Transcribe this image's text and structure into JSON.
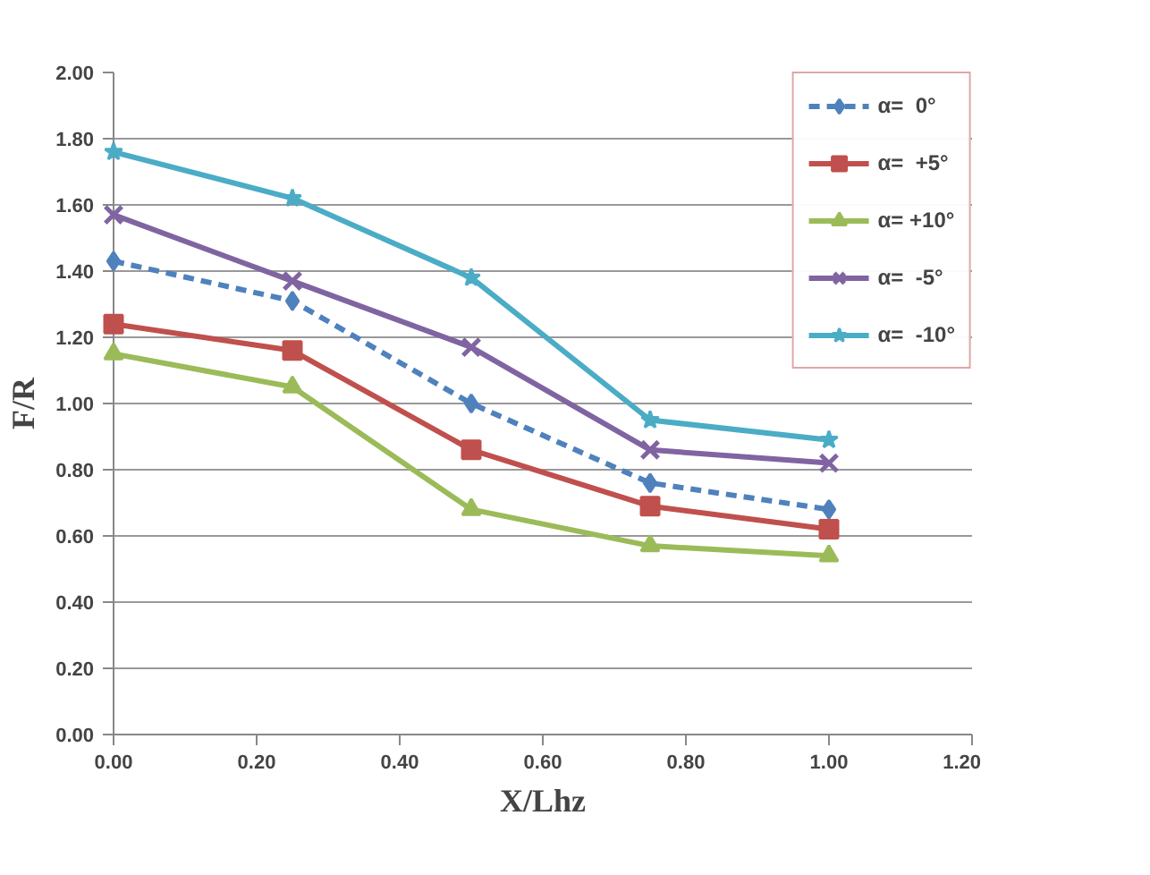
{
  "chart_data": {
    "type": "line",
    "xlabel": "X/Lhz",
    "ylabel": "F/R",
    "x": [
      0,
      0.25,
      0.5,
      0.75,
      1.0
    ],
    "series": [
      {
        "name": "α=  0°",
        "color": "#4f81bd",
        "values": [
          1.43,
          1.31,
          1.0,
          0.76,
          0.68
        ],
        "marker": "diamond",
        "line_style": "dashed"
      },
      {
        "name": "α=  +5°",
        "color": "#c0504d",
        "values": [
          1.24,
          1.16,
          0.86,
          0.69,
          0.62
        ],
        "marker": "square",
        "line_style": "solid"
      },
      {
        "name": "α= +10°",
        "color": "#9bbb59",
        "values": [
          1.15,
          1.05,
          0.68,
          0.57,
          0.54
        ],
        "marker": "triangle",
        "line_style": "solid"
      },
      {
        "name": "α=  -5°",
        "color": "#8064a2",
        "values": [
          1.57,
          1.37,
          1.17,
          0.86,
          0.82
        ],
        "marker": "cross",
        "line_style": "solid"
      },
      {
        "name": "α=  -10°",
        "color": "#4bacc6",
        "values": [
          1.76,
          1.62,
          1.38,
          0.95,
          0.89
        ],
        "marker": "star",
        "line_style": "solid"
      }
    ],
    "xlim": [
      0,
      1.2
    ],
    "ylim": [
      0,
      2.0
    ],
    "xticks": [
      {
        "value": 0,
        "label": "0.00"
      },
      {
        "value": 0.2,
        "label": "0.20"
      },
      {
        "value": 0.4,
        "label": "0.40"
      },
      {
        "value": 0.6,
        "label": "0.60"
      },
      {
        "value": 0.8,
        "label": "0.80"
      },
      {
        "value": 1.0,
        "label": "1.00"
      },
      {
        "value": 1.2,
        "label": "1.20"
      }
    ],
    "yticks": [
      {
        "value": 0,
        "label": "0.00"
      },
      {
        "value": 0.2,
        "label": "0.20"
      },
      {
        "value": 0.4,
        "label": "0.40"
      },
      {
        "value": 0.6,
        "label": "0.60"
      },
      {
        "value": 0.8,
        "label": "0.80"
      },
      {
        "value": 1.0,
        "label": "1.00"
      },
      {
        "value": 1.2,
        "label": "1.20"
      },
      {
        "value": 1.4,
        "label": "1.40"
      },
      {
        "value": 1.6,
        "label": "1.60"
      },
      {
        "value": 1.8,
        "label": "1.80"
      },
      {
        "value": 2.0,
        "label": "2.00"
      }
    ],
    "grid": "y",
    "legend": "top right"
  }
}
